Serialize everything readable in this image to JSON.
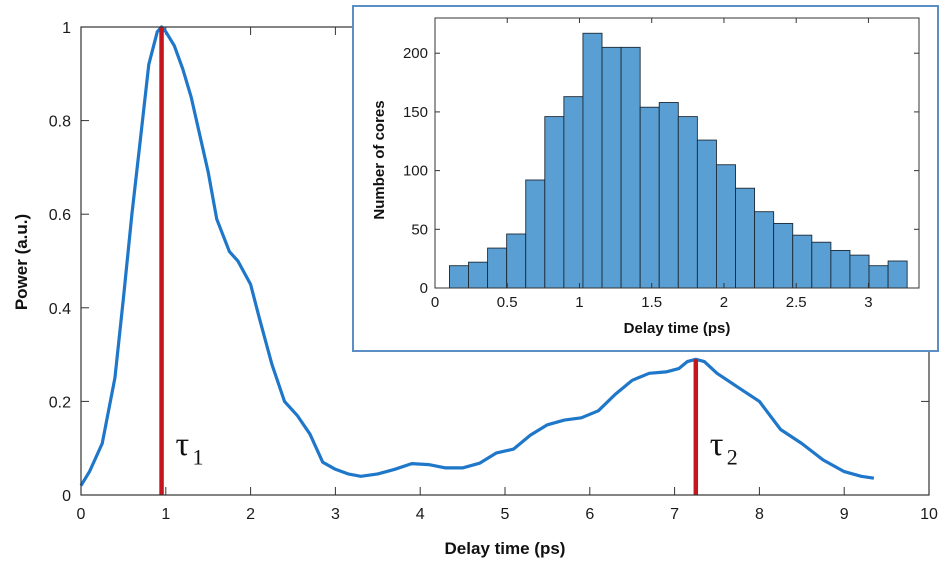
{
  "chart_data": [
    {
      "type": "line",
      "xlabel": "Delay time (ps)",
      "ylabel": "Power (a.u.)",
      "xlim": [
        0,
        10
      ],
      "ylim": [
        0,
        1
      ],
      "xticks": [
        "0",
        "1",
        "2",
        "3",
        "4",
        "5",
        "6",
        "7",
        "8",
        "9",
        "10"
      ],
      "yticks": [
        "0",
        "0.2",
        "0.4",
        "0.6",
        "0.8",
        "1"
      ],
      "grid": false,
      "color": "#1f77c9",
      "series": [
        {
          "x": [
            0,
            0.1,
            0.25,
            0.4,
            0.5,
            0.6,
            0.7,
            0.8,
            0.9,
            0.95,
            1.0,
            1.1,
            1.2,
            1.3,
            1.4,
            1.5,
            1.6,
            1.75,
            1.85,
            2.0,
            2.1,
            2.25,
            2.4,
            2.55,
            2.7,
            2.85,
            3.0,
            3.15,
            3.3,
            3.5,
            3.7,
            3.9,
            4.1,
            4.3,
            4.5,
            4.7,
            4.9,
            5.1,
            5.3,
            5.5,
            5.7,
            5.9,
            6.1,
            6.3,
            6.5,
            6.7,
            6.9,
            7.05,
            7.15,
            7.25,
            7.35,
            7.5,
            7.75,
            8.0,
            8.25,
            8.5,
            8.75,
            9.0,
            9.2,
            9.35
          ],
          "y": [
            0.02,
            0.05,
            0.11,
            0.25,
            0.42,
            0.6,
            0.76,
            0.92,
            0.99,
            1.0,
            0.99,
            0.96,
            0.91,
            0.85,
            0.77,
            0.69,
            0.59,
            0.52,
            0.5,
            0.45,
            0.38,
            0.28,
            0.2,
            0.17,
            0.13,
            0.07,
            0.055,
            0.045,
            0.04,
            0.045,
            0.055,
            0.067,
            0.065,
            0.058,
            0.058,
            0.068,
            0.09,
            0.098,
            0.128,
            0.15,
            0.16,
            0.165,
            0.18,
            0.215,
            0.245,
            0.26,
            0.263,
            0.27,
            0.285,
            0.29,
            0.285,
            0.26,
            0.23,
            0.2,
            0.14,
            0.11,
            0.075,
            0.05,
            0.04,
            0.036
          ]
        }
      ],
      "markers": [
        {
          "x": 0.95,
          "label": "τ",
          "sub": "1",
          "color": "#c4161c"
        },
        {
          "x": 7.25,
          "label": "τ",
          "sub": "2",
          "color": "#c4161c"
        }
      ]
    },
    {
      "type": "bar",
      "xlabel": "Delay time (ps)",
      "ylabel": "Number of cores",
      "xlim": [
        0,
        3.35
      ],
      "ylim": [
        0,
        230
      ],
      "xticks": [
        "0",
        "0.5",
        "1",
        "1.5",
        "2",
        "2.5",
        "3"
      ],
      "yticks": [
        "0",
        "50",
        "100",
        "150",
        "200"
      ],
      "color": "#5a9fd4",
      "bin_edges": [
        0.1,
        0.232,
        0.364,
        0.496,
        0.628,
        0.76,
        0.892,
        1.024,
        1.156,
        1.288,
        1.42,
        1.552,
        1.684,
        1.816,
        1.948,
        2.08,
        2.212,
        2.344,
        2.476,
        2.608,
        2.74,
        2.872,
        3.004,
        3.136,
        3.268
      ],
      "values": [
        19,
        22,
        34,
        46,
        92,
        146,
        163,
        217,
        205,
        205,
        154,
        158,
        146,
        126,
        105,
        85,
        65,
        55,
        45,
        39,
        32,
        28,
        19,
        23
      ]
    }
  ]
}
